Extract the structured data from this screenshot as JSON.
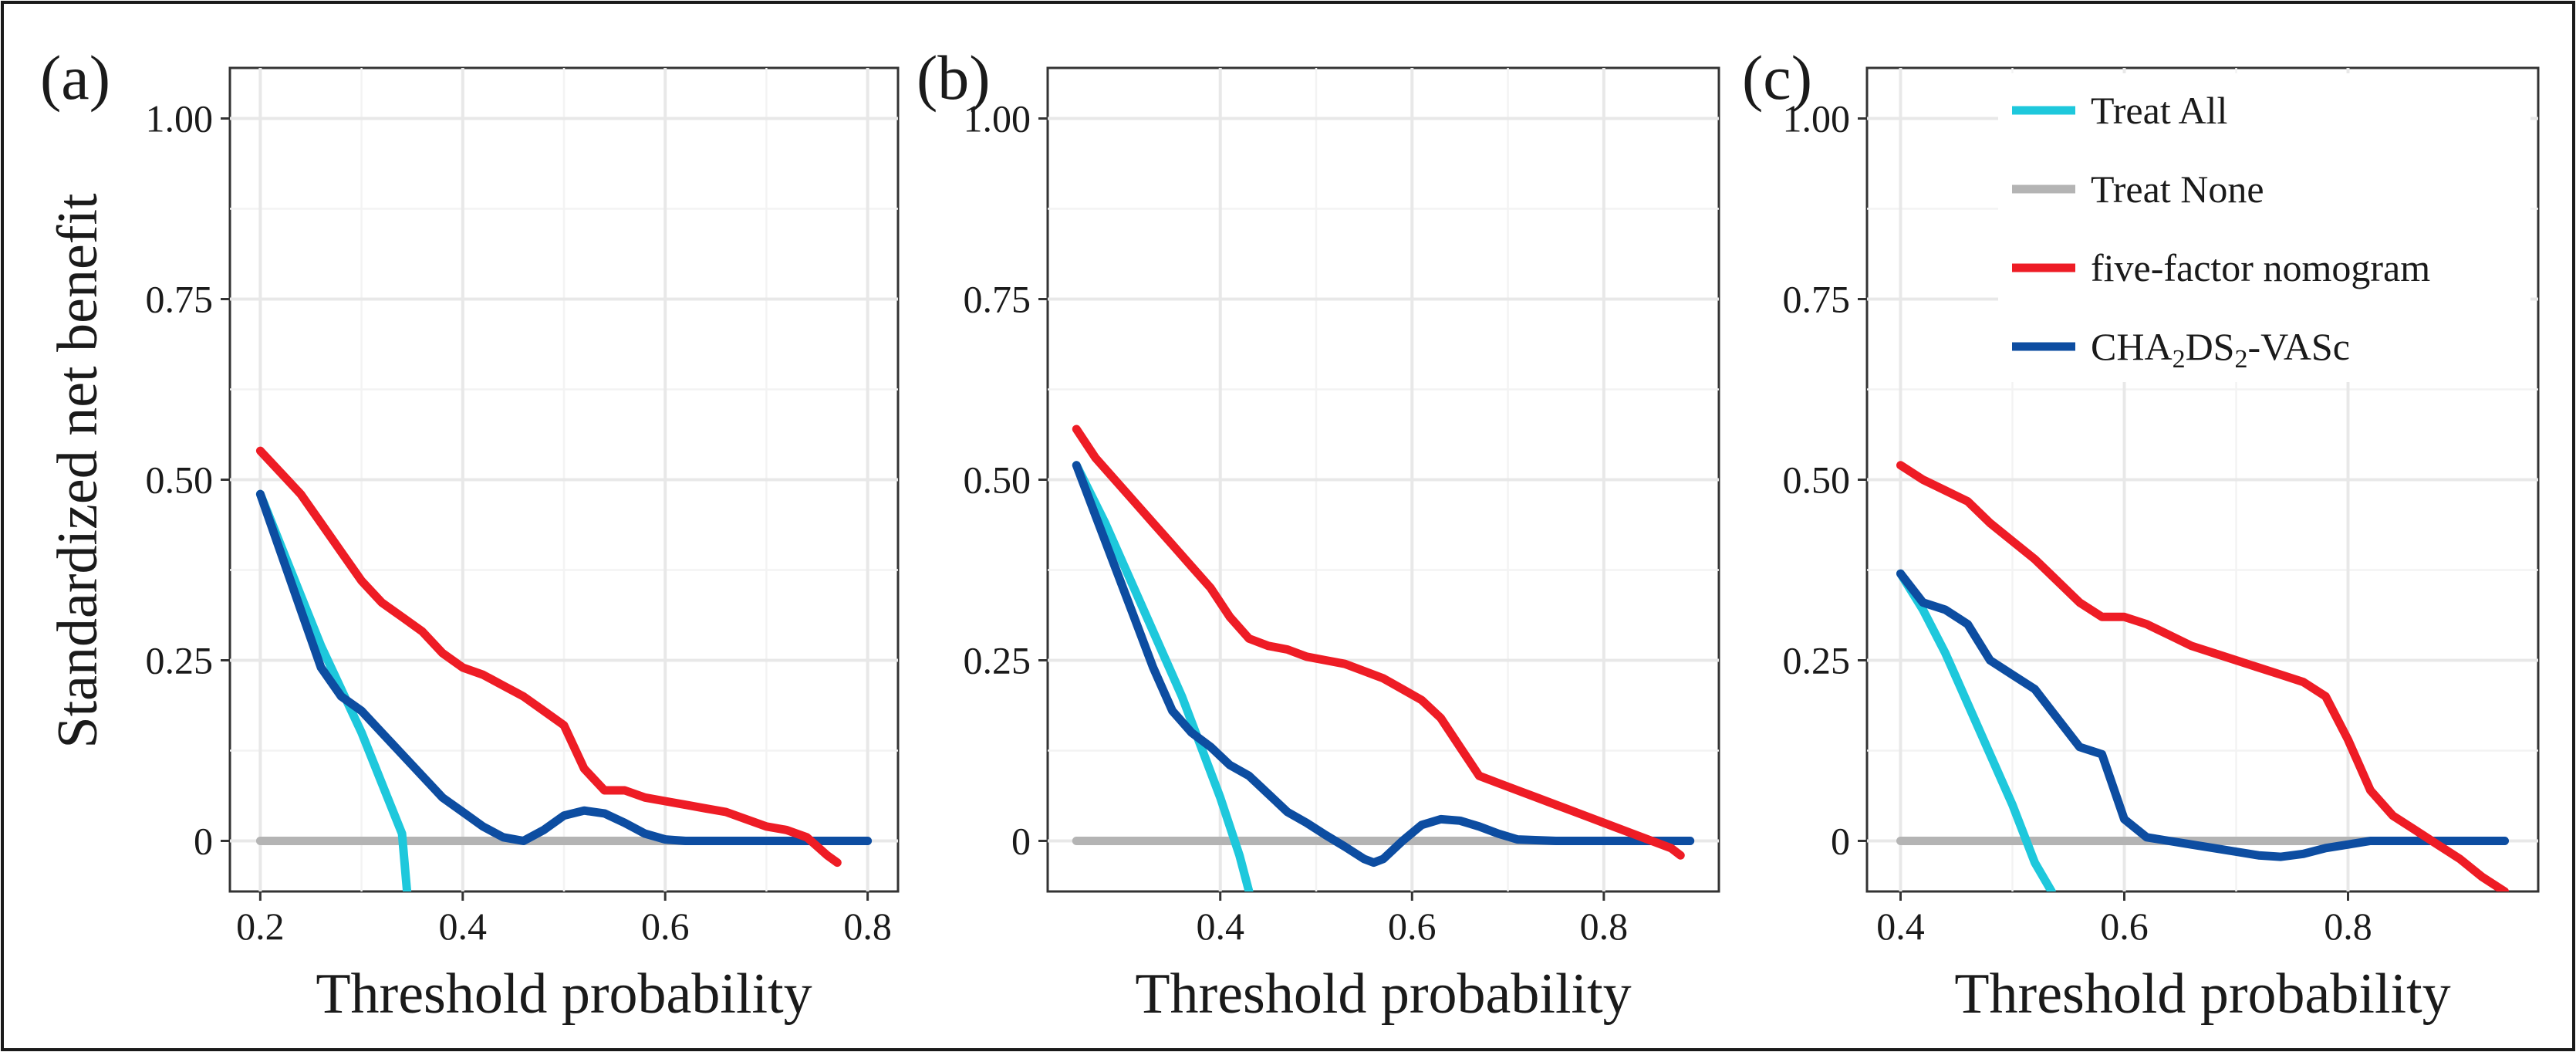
{
  "ylabel": "Standardized net benefit",
  "legend": [
    {
      "key": "treat_all",
      "label": "Treat All",
      "color": "#1ec8dc"
    },
    {
      "key": "treat_none",
      "label": "Treat None",
      "color": "#b4b4b4"
    },
    {
      "key": "nomogram",
      "label": "five-factor nomogram",
      "color": "#ee1c25"
    },
    {
      "key": "chads",
      "label": "CHA2DS2-VASc",
      "color": "#0d4da1"
    }
  ],
  "chart_data": [
    {
      "type": "line",
      "panel": "(a)",
      "xlabel": "Threshold probability",
      "ylabel": "Standardized net benefit",
      "xlim": [
        0.17,
        0.83
      ],
      "ylim": [
        -0.07,
        1.07
      ],
      "xticks": [
        0.2,
        0.4,
        0.6,
        0.8
      ],
      "xtick_labels": [
        "0.2",
        "0.4",
        "0.6",
        "0.8"
      ],
      "yticks": [
        0,
        0.25,
        0.5,
        0.75,
        1.0
      ],
      "ytick_labels": [
        "0",
        "0.25",
        "0.50",
        "0.75",
        "1.00"
      ],
      "grid": true,
      "series": [
        {
          "key": "treat_all",
          "name": "Treat All",
          "x": [
            0.2,
            0.22,
            0.24,
            0.26,
            0.28,
            0.3,
            0.32,
            0.34,
            0.345
          ],
          "y": [
            0.48,
            0.41,
            0.34,
            0.27,
            0.21,
            0.15,
            0.08,
            0.01,
            -0.07
          ]
        },
        {
          "key": "treat_none",
          "name": "Treat None",
          "x": [
            0.2,
            0.8
          ],
          "y": [
            0,
            0
          ]
        },
        {
          "key": "nomogram",
          "name": "five-factor nomogram",
          "x": [
            0.2,
            0.22,
            0.24,
            0.26,
            0.28,
            0.3,
            0.32,
            0.34,
            0.36,
            0.38,
            0.4,
            0.42,
            0.44,
            0.46,
            0.48,
            0.5,
            0.52,
            0.54,
            0.56,
            0.58,
            0.6,
            0.62,
            0.64,
            0.66,
            0.68,
            0.7,
            0.72,
            0.74,
            0.76,
            0.77
          ],
          "y": [
            0.54,
            0.51,
            0.48,
            0.44,
            0.4,
            0.36,
            0.33,
            0.31,
            0.29,
            0.26,
            0.24,
            0.23,
            0.215,
            0.2,
            0.18,
            0.16,
            0.1,
            0.07,
            0.07,
            0.06,
            0.055,
            0.05,
            0.045,
            0.04,
            0.03,
            0.02,
            0.015,
            0.005,
            -0.02,
            -0.03
          ]
        },
        {
          "key": "chads",
          "name": "CHA2DS2-VASc",
          "x": [
            0.2,
            0.22,
            0.24,
            0.26,
            0.28,
            0.3,
            0.32,
            0.34,
            0.36,
            0.38,
            0.4,
            0.42,
            0.44,
            0.46,
            0.48,
            0.5,
            0.52,
            0.54,
            0.56,
            0.58,
            0.6,
            0.62,
            0.64,
            0.66,
            0.7,
            0.75,
            0.8
          ],
          "y": [
            0.48,
            0.4,
            0.32,
            0.24,
            0.2,
            0.18,
            0.15,
            0.12,
            0.09,
            0.06,
            0.04,
            0.02,
            0.005,
            0.0,
            0.015,
            0.035,
            0.042,
            0.038,
            0.025,
            0.01,
            0.002,
            0.0,
            0.0,
            0.0,
            0.0,
            0.0,
            0.0
          ]
        }
      ]
    },
    {
      "type": "line",
      "panel": "(b)",
      "xlabel": "Threshold probability",
      "ylabel": "",
      "xlim": [
        0.22,
        0.92
      ],
      "ylim": [
        -0.07,
        1.07
      ],
      "xticks": [
        0.4,
        0.6,
        0.8
      ],
      "xtick_labels": [
        "0.4",
        "0.6",
        "0.8"
      ],
      "yticks": [
        0,
        0.25,
        0.5,
        0.75,
        1.0
      ],
      "ytick_labels": [
        "0",
        "0.25",
        "0.50",
        "0.75",
        "1.00"
      ],
      "grid": true,
      "series": [
        {
          "key": "treat_all",
          "name": "Treat All",
          "x": [
            0.25,
            0.28,
            0.3,
            0.32,
            0.34,
            0.36,
            0.38,
            0.4,
            0.42,
            0.43
          ],
          "y": [
            0.52,
            0.44,
            0.38,
            0.32,
            0.26,
            0.2,
            0.13,
            0.06,
            -0.02,
            -0.07
          ]
        },
        {
          "key": "treat_none",
          "name": "Treat None",
          "x": [
            0.25,
            0.89
          ],
          "y": [
            0,
            0
          ]
        },
        {
          "key": "nomogram",
          "name": "five-factor nomogram",
          "x": [
            0.25,
            0.27,
            0.29,
            0.31,
            0.33,
            0.35,
            0.37,
            0.39,
            0.41,
            0.43,
            0.45,
            0.47,
            0.49,
            0.51,
            0.53,
            0.55,
            0.57,
            0.59,
            0.61,
            0.63,
            0.65,
            0.67,
            0.69,
            0.71,
            0.73,
            0.75,
            0.77,
            0.79,
            0.81,
            0.83,
            0.85,
            0.87,
            0.88
          ],
          "y": [
            0.57,
            0.53,
            0.5,
            0.47,
            0.44,
            0.41,
            0.38,
            0.35,
            0.31,
            0.28,
            0.27,
            0.265,
            0.255,
            0.25,
            0.245,
            0.235,
            0.225,
            0.21,
            0.195,
            0.17,
            0.13,
            0.09,
            0.08,
            0.07,
            0.06,
            0.05,
            0.04,
            0.03,
            0.02,
            0.01,
            0.0,
            -0.01,
            -0.02
          ]
        },
        {
          "key": "chads",
          "name": "CHA2DS2-VASc",
          "x": [
            0.25,
            0.27,
            0.29,
            0.31,
            0.33,
            0.35,
            0.37,
            0.39,
            0.41,
            0.43,
            0.45,
            0.47,
            0.49,
            0.51,
            0.53,
            0.55,
            0.56,
            0.57,
            0.59,
            0.61,
            0.63,
            0.65,
            0.67,
            0.69,
            0.71,
            0.75,
            0.8,
            0.85,
            0.89
          ],
          "y": [
            0.52,
            0.45,
            0.38,
            0.31,
            0.24,
            0.18,
            0.15,
            0.13,
            0.105,
            0.09,
            0.065,
            0.04,
            0.025,
            0.008,
            -0.008,
            -0.025,
            -0.03,
            -0.025,
            0.0,
            0.022,
            0.03,
            0.028,
            0.02,
            0.01,
            0.002,
            0.0,
            0.0,
            0.0,
            0.0
          ]
        }
      ]
    },
    {
      "type": "line",
      "panel": "(c)",
      "xlabel": "Threshold probability",
      "ylabel": "",
      "xlim": [
        0.37,
        0.97
      ],
      "ylim": [
        -0.07,
        1.07
      ],
      "xticks": [
        0.4,
        0.6,
        0.8
      ],
      "xtick_labels": [
        "0.4",
        "0.6",
        "0.8"
      ],
      "yticks": [
        0,
        0.25,
        0.5,
        0.75,
        1.0
      ],
      "ytick_labels": [
        "0",
        "0.25",
        "0.50",
        "0.75",
        "1.00"
      ],
      "grid": true,
      "series": [
        {
          "key": "treat_all",
          "name": "Treat All",
          "x": [
            0.4,
            0.42,
            0.44,
            0.46,
            0.48,
            0.5,
            0.52,
            0.535
          ],
          "y": [
            0.37,
            0.32,
            0.26,
            0.19,
            0.12,
            0.05,
            -0.03,
            -0.07
          ]
        },
        {
          "key": "treat_none",
          "name": "Treat None",
          "x": [
            0.4,
            0.94
          ],
          "y": [
            0,
            0
          ]
        },
        {
          "key": "nomogram",
          "name": "five-factor nomogram",
          "x": [
            0.4,
            0.42,
            0.44,
            0.46,
            0.48,
            0.5,
            0.52,
            0.54,
            0.56,
            0.58,
            0.6,
            0.62,
            0.64,
            0.66,
            0.68,
            0.7,
            0.72,
            0.74,
            0.76,
            0.78,
            0.8,
            0.82,
            0.84,
            0.86,
            0.88,
            0.9,
            0.92,
            0.94
          ],
          "y": [
            0.52,
            0.5,
            0.485,
            0.47,
            0.44,
            0.415,
            0.39,
            0.36,
            0.33,
            0.31,
            0.31,
            0.3,
            0.285,
            0.27,
            0.26,
            0.25,
            0.24,
            0.23,
            0.22,
            0.2,
            0.14,
            0.07,
            0.035,
            0.015,
            -0.005,
            -0.025,
            -0.05,
            -0.07
          ]
        },
        {
          "key": "chads",
          "name": "CHA2DS2-VASc",
          "x": [
            0.4,
            0.42,
            0.44,
            0.46,
            0.48,
            0.5,
            0.52,
            0.54,
            0.56,
            0.58,
            0.6,
            0.62,
            0.64,
            0.66,
            0.68,
            0.7,
            0.72,
            0.74,
            0.76,
            0.78,
            0.8,
            0.82,
            0.86,
            0.9,
            0.94
          ],
          "y": [
            0.37,
            0.33,
            0.32,
            0.3,
            0.25,
            0.23,
            0.21,
            0.17,
            0.13,
            0.12,
            0.03,
            0.005,
            0.0,
            -0.005,
            -0.01,
            -0.015,
            -0.02,
            -0.022,
            -0.018,
            -0.01,
            -0.005,
            0.0,
            0.0,
            0.0,
            0.0
          ]
        }
      ]
    }
  ]
}
